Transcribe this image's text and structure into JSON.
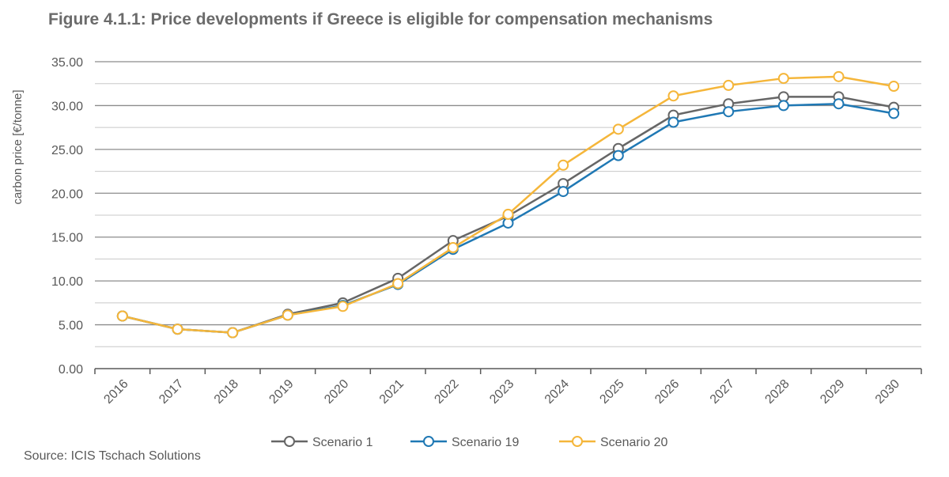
{
  "title": "Figure 4.1.1: Price developments if Greece is eligible for compensation mechanisms",
  "source": "Source: ICIS Tschach Solutions",
  "chart_data": {
    "type": "line",
    "title": "Figure 4.1.1: Price developments if Greece is eligible for compensation mechanisms",
    "xlabel": "",
    "ylabel": "carbon price [€/tonne]",
    "ylim": [
      0,
      35
    ],
    "yticks": [
      "0.00",
      "5.00",
      "10.00",
      "15.00",
      "20.00",
      "25.00",
      "30.00",
      "35.00"
    ],
    "minor_gridlines": true,
    "categories": [
      "2016",
      "2017",
      "2018",
      "2019",
      "2020",
      "2021",
      "2022",
      "2023",
      "2024",
      "2025",
      "2026",
      "2027",
      "2028",
      "2029",
      "2030"
    ],
    "series": [
      {
        "name": "Scenario 1",
        "color": "#666666",
        "values": [
          6.0,
          4.5,
          4.1,
          6.2,
          7.5,
          10.3,
          14.6,
          17.4,
          21.1,
          25.1,
          28.9,
          30.2,
          31.0,
          31.0,
          29.8
        ]
      },
      {
        "name": "Scenario 19",
        "color": "#1f78b4",
        "values": [
          6.0,
          4.5,
          4.1,
          6.1,
          7.2,
          9.6,
          13.6,
          16.6,
          20.2,
          24.3,
          28.1,
          29.3,
          30.0,
          30.2,
          29.1
        ]
      },
      {
        "name": "Scenario 20",
        "color": "#f5b63a",
        "values": [
          6.0,
          4.5,
          4.1,
          6.1,
          7.1,
          9.7,
          13.8,
          17.6,
          23.2,
          27.3,
          31.1,
          32.3,
          33.1,
          33.3,
          32.2
        ]
      }
    ],
    "legend_position": "bottom-center"
  }
}
